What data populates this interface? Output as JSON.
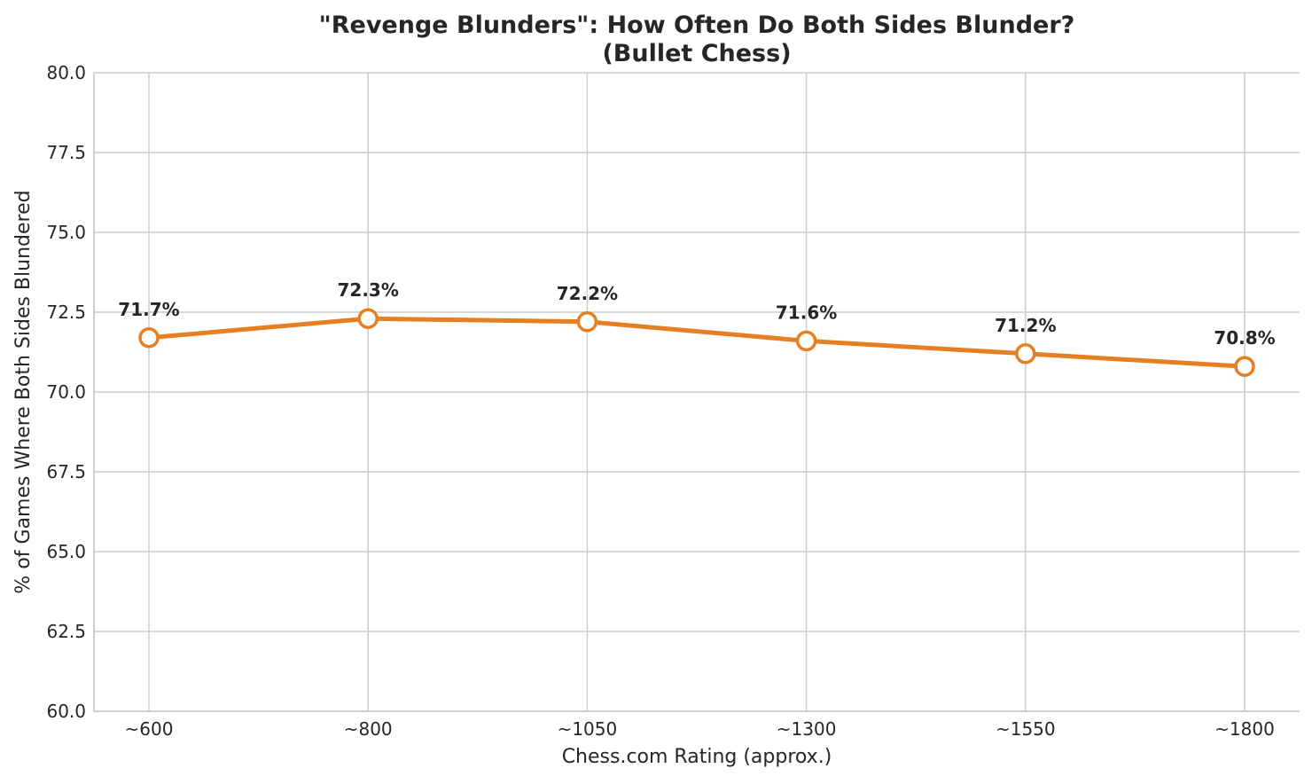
{
  "chart_data": {
    "type": "line",
    "title": "\"Revenge Blunders\": How Often Do Both Sides Blunder?",
    "subtitle": "(Bullet Chess)",
    "xlabel": "Chess.com Rating (approx.)",
    "ylabel": "% of Games Where Both Sides Blundered",
    "categories": [
      "~600",
      "~800",
      "~1050",
      "~1300",
      "~1550",
      "~1800"
    ],
    "values": [
      71.7,
      72.3,
      72.2,
      71.6,
      71.2,
      70.8
    ],
    "data_labels": [
      "71.7%",
      "72.3%",
      "72.2%",
      "71.6%",
      "71.2%",
      "70.8%"
    ],
    "ylim": [
      60.0,
      80.0
    ],
    "yticks": [
      "60.0",
      "62.5",
      "65.0",
      "67.5",
      "70.0",
      "72.5",
      "75.0",
      "77.5",
      "80.0"
    ],
    "ytick_values": [
      60.0,
      62.5,
      65.0,
      67.5,
      70.0,
      72.5,
      75.0,
      77.5,
      80.0
    ],
    "grid": true,
    "line_color": "#E67E22",
    "marker_fill": "#ffffff",
    "grid_color": "#cccccc"
  }
}
